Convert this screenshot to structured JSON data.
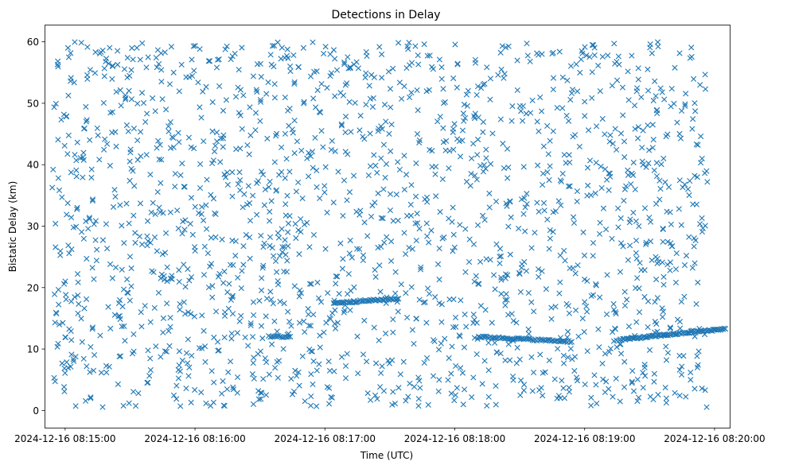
{
  "chart_data": {
    "type": "scatter",
    "title": "Detections in Delay",
    "xlabel": "Time (UTC)",
    "ylabel": "Bistatic Delay (km)",
    "marker": "x",
    "series_color": "#1f77b4",
    "xlim_seconds": [
      -9.5,
      307
    ],
    "ylim": [
      -2.8,
      62.8
    ],
    "x_ticks": [
      {
        "t": 0,
        "label": "2024-12-16 08:15:00"
      },
      {
        "t": 60,
        "label": "2024-12-16 08:16:00"
      },
      {
        "t": 120,
        "label": "2024-12-16 08:17:00"
      },
      {
        "t": 180,
        "label": "2024-12-16 08:18:00"
      },
      {
        "t": 240,
        "label": "2024-12-16 08:19:00"
      },
      {
        "t": 300,
        "label": "2024-12-16 08:20:00"
      }
    ],
    "y_ticks": [
      0,
      10,
      20,
      30,
      40,
      50,
      60
    ],
    "noise_detections": {
      "count": 1800,
      "t_range": [
        -6,
        297
      ],
      "delay_range": [
        0.5,
        60
      ],
      "description": "uniformly scattered clutter detections"
    },
    "tracks": [
      {
        "t_start": 94,
        "t_end": 104,
        "delay_start": 12.0,
        "delay_end": 12.0,
        "points": 14
      },
      {
        "t_start": 124,
        "t_end": 154,
        "delay_start": 17.5,
        "delay_end": 18.2,
        "points": 50
      },
      {
        "t_start": 191,
        "t_end": 234,
        "delay_start": 12.0,
        "delay_end": 11.2,
        "points": 65
      },
      {
        "t_start": 256,
        "t_end": 305,
        "delay_start": 11.5,
        "delay_end": 13.3,
        "points": 90
      }
    ]
  }
}
